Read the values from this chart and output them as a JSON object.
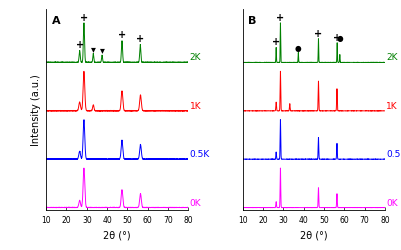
{
  "xlabel": "2θ (°)",
  "ylabel": "Intensity (a.u.)",
  "xmin": 10,
  "xmax": 80,
  "colors": {
    "0K": "#ff00ff",
    "0.5K": "#0000ff",
    "1K": "#ff0000",
    "2K": "#008000"
  },
  "offsets_A": {
    "0K": 0.0,
    "0.5K": 0.22,
    "1K": 0.44,
    "2K": 0.66
  },
  "offsets_B": {
    "0K": 0.0,
    "0.5K": 0.22,
    "1K": 0.44,
    "2K": 0.66
  },
  "scale_A": 0.18,
  "scale_B": 0.18,
  "background_color": "#ffffff",
  "line_width": 0.7,
  "tick_fontsize": 5.5,
  "label_fontsize": 7,
  "cat_label_fontsize": 6.5,
  "ann_fontsize": 8,
  "panel_label_fontsize": 8
}
